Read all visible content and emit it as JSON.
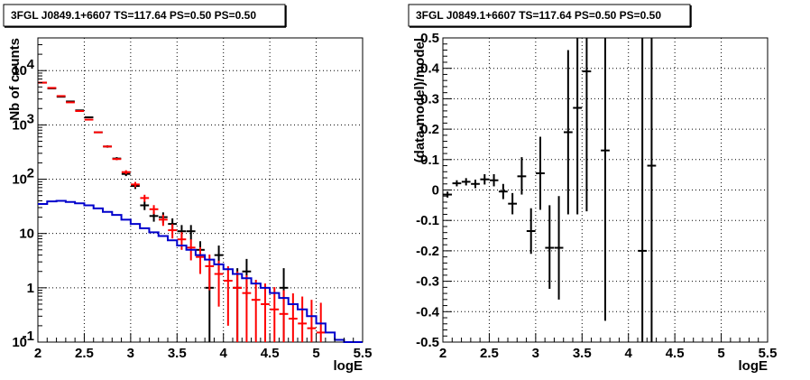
{
  "chart_data": [
    {
      "type": "line",
      "title": "3FGL J0849.1+6607 TS=117.64 PS=0.50 PS=0.50",
      "xlabel": "logE",
      "ylabel": "Nb of counts",
      "xlim": [
        2,
        5.5
      ],
      "ylim": [
        0.1,
        40000
      ],
      "yscale": "log",
      "grid": true,
      "x_ticks": [
        "2",
        "2.5",
        "3",
        "3.5",
        "4",
        "4.5",
        "5",
        "5.5"
      ],
      "y_ticks": [
        {
          "base": "10",
          "exp": "-1",
          "value": 0.1
        },
        {
          "base": "1",
          "exp": "",
          "value": 1
        },
        {
          "base": "10",
          "exp": "",
          "value": 10
        },
        {
          "base": "10",
          "exp": "2",
          "value": 100
        },
        {
          "base": "10",
          "exp": "3",
          "value": 1000
        },
        {
          "base": "10",
          "exp": "4",
          "value": 10000
        }
      ],
      "colors": {
        "data": "#000000",
        "model": "#ff0000",
        "component": "#0000cc"
      },
      "series": [
        {
          "kind": "points",
          "color": "#000000",
          "points": [
            {
              "x": 2.05,
              "y": 6000,
              "lo": 5900,
              "hi": 6100
            },
            {
              "x": 2.15,
              "y": 4700,
              "lo": 4620,
              "hi": 4780
            },
            {
              "x": 2.25,
              "y": 3300,
              "lo": 3240,
              "hi": 3360
            },
            {
              "x": 2.35,
              "y": 2700,
              "lo": 2650,
              "hi": 2750
            },
            {
              "x": 2.45,
              "y": 1850,
              "lo": 1810,
              "hi": 1890
            },
            {
              "x": 2.55,
              "y": 1380,
              "lo": 1345,
              "hi": 1415
            },
            {
              "x": 2.65,
              "y": 730,
              "lo": 705,
              "hi": 755
            },
            {
              "x": 2.75,
              "y": 400,
              "lo": 380,
              "hi": 420
            },
            {
              "x": 2.85,
              "y": 240,
              "lo": 225,
              "hi": 255
            },
            {
              "x": 2.95,
              "y": 125,
              "lo": 114,
              "hi": 136
            },
            {
              "x": 3.05,
              "y": 75,
              "lo": 66,
              "hi": 84
            },
            {
              "x": 3.15,
              "y": 33,
              "lo": 27,
              "hi": 39
            },
            {
              "x": 3.25,
              "y": 21,
              "lo": 16.5,
              "hi": 25.5
            },
            {
              "x": 3.35,
              "y": 20,
              "lo": 15.5,
              "hi": 24.5
            },
            {
              "x": 3.45,
              "y": 15,
              "lo": 11,
              "hi": 19
            },
            {
              "x": 3.55,
              "y": 11,
              "lo": 7.7,
              "hi": 14.3
            },
            {
              "x": 3.65,
              "y": 11,
              "lo": 7.7,
              "hi": 14.3
            },
            {
              "x": 3.75,
              "y": 5,
              "lo": 3,
              "hi": 7.2
            },
            {
              "x": 3.85,
              "y": 1,
              "lo": 0.1,
              "hi": 2.3
            },
            {
              "x": 3.95,
              "y": 4,
              "lo": 2.1,
              "hi": 6.0
            },
            {
              "x": 4.15,
              "y": 1,
              "lo": 0.1,
              "hi": 2.3
            },
            {
              "x": 4.25,
              "y": 2,
              "lo": 0.6,
              "hi": 3.4
            },
            {
              "x": 4.65,
              "y": 1,
              "lo": 0.1,
              "hi": 2.3
            }
          ]
        },
        {
          "kind": "points",
          "color": "#ff0000",
          "points": [
            {
              "x": 2.05,
              "y": 6000,
              "lo": 5930,
              "hi": 6070
            },
            {
              "x": 2.15,
              "y": 4800,
              "lo": 4740,
              "hi": 4860
            },
            {
              "x": 2.25,
              "y": 3400,
              "lo": 3350,
              "hi": 3450
            },
            {
              "x": 2.35,
              "y": 2600,
              "lo": 2560,
              "hi": 2640
            },
            {
              "x": 2.45,
              "y": 1800,
              "lo": 1770,
              "hi": 1830
            },
            {
              "x": 2.55,
              "y": 1250,
              "lo": 1225,
              "hi": 1275
            },
            {
              "x": 2.65,
              "y": 730,
              "lo": 713,
              "hi": 747
            },
            {
              "x": 2.75,
              "y": 400,
              "lo": 387,
              "hi": 413
            },
            {
              "x": 2.85,
              "y": 235,
              "lo": 225,
              "hi": 245
            },
            {
              "x": 2.95,
              "y": 135,
              "lo": 124,
              "hi": 146
            },
            {
              "x": 3.05,
              "y": 80,
              "lo": 71,
              "hi": 89
            },
            {
              "x": 3.15,
              "y": 45,
              "lo": 38.3,
              "hi": 51.7
            },
            {
              "x": 3.25,
              "y": 28,
              "lo": 22.7,
              "hi": 33.3
            },
            {
              "x": 3.35,
              "y": 18,
              "lo": 13.8,
              "hi": 22.2
            },
            {
              "x": 3.45,
              "y": 11.5,
              "lo": 8.1,
              "hi": 14.9
            },
            {
              "x": 3.55,
              "y": 7.8,
              "lo": 5.0,
              "hi": 10.6
            },
            {
              "x": 3.65,
              "y": 5.5,
              "lo": 3.2,
              "hi": 7.8
            },
            {
              "x": 3.75,
              "y": 3.7,
              "lo": 1.8,
              "hi": 5.6
            },
            {
              "x": 3.85,
              "y": 2.5,
              "lo": 0.9,
              "hi": 4.1
            },
            {
              "x": 3.95,
              "y": 1.8,
              "lo": 0.45,
              "hi": 3.15
            },
            {
              "x": 4.05,
              "y": 1.35,
              "lo": 0.2,
              "hi": 2.5
            },
            {
              "x": 4.15,
              "y": 1.0,
              "lo": 0.1,
              "hi": 2.0
            },
            {
              "x": 4.25,
              "y": 0.8,
              "lo": 0.1,
              "hi": 1.7
            },
            {
              "x": 4.35,
              "y": 0.6,
              "lo": 0.1,
              "hi": 1.4
            },
            {
              "x": 4.45,
              "y": 0.5,
              "lo": 0.1,
              "hi": 1.2
            },
            {
              "x": 4.55,
              "y": 0.4,
              "lo": 0.1,
              "hi": 1.03
            },
            {
              "x": 4.65,
              "y": 0.33,
              "lo": 0.1,
              "hi": 0.9
            },
            {
              "x": 4.75,
              "y": 0.27,
              "lo": 0.1,
              "hi": 0.79
            },
            {
              "x": 4.85,
              "y": 0.22,
              "lo": 0.1,
              "hi": 0.69
            },
            {
              "x": 4.95,
              "y": 0.18,
              "lo": 0.1,
              "hi": 0.6
            },
            {
              "x": 5.05,
              "y": 0.15,
              "lo": 0.1,
              "hi": 0.53
            }
          ]
        },
        {
          "kind": "step",
          "color": "#0000cc",
          "bin_width": 0.1,
          "x": [
            2.0,
            2.1,
            2.2,
            2.3,
            2.4,
            2.5,
            2.6,
            2.7,
            2.8,
            2.9,
            3.0,
            3.1,
            3.2,
            3.3,
            3.4,
            3.5,
            3.6,
            3.7,
            3.8,
            3.9,
            4.0,
            4.1,
            4.2,
            4.3,
            4.4,
            4.5,
            4.6,
            4.7,
            4.8,
            4.9,
            5.0,
            5.1,
            5.2,
            5.3,
            5.4
          ],
          "y": [
            35,
            39,
            40,
            38,
            36,
            33,
            29,
            25,
            22,
            18,
            15,
            12.5,
            10.5,
            9,
            7.5,
            6,
            5,
            4,
            3.3,
            2.7,
            2.2,
            1.8,
            1.5,
            1.2,
            1.0,
            0.8,
            0.65,
            0.5,
            0.4,
            0.3,
            0.22,
            0.15,
            0.11,
            0.1,
            0.1
          ]
        }
      ]
    },
    {
      "type": "scatter",
      "title": "3FGL J0849.1+6607 TS=117.64 PS=0.50 PS=0.50",
      "xlabel": "logE",
      "ylabel": "(data-model)/model",
      "xlim": [
        2,
        5.5
      ],
      "ylim": [
        -0.5,
        0.5
      ],
      "grid": true,
      "x_ticks": [
        "2",
        "2.5",
        "3",
        "3.5",
        "4",
        "4.5",
        "5",
        "5.5"
      ],
      "y_ticks": [
        "-0.5",
        "-0.4",
        "-0.3",
        "-0.2",
        "-0.1",
        "0",
        "0.1",
        "0.2",
        "0.3",
        "0.4",
        "0.5"
      ],
      "series": [
        {
          "color": "#000000",
          "points": [
            {
              "x": 2.05,
              "y": -0.015,
              "lo": -0.025,
              "hi": -0.005
            },
            {
              "x": 2.15,
              "y": 0.022,
              "lo": 0.012,
              "hi": 0.032
            },
            {
              "x": 2.25,
              "y": 0.027,
              "lo": 0.015,
              "hi": 0.039
            },
            {
              "x": 2.35,
              "y": 0.02,
              "lo": 0.006,
              "hi": 0.034
            },
            {
              "x": 2.45,
              "y": 0.035,
              "lo": 0.018,
              "hi": 0.052
            },
            {
              "x": 2.55,
              "y": 0.032,
              "lo": 0.012,
              "hi": 0.052
            },
            {
              "x": 2.65,
              "y": -0.005,
              "lo": -0.03,
              "hi": 0.02
            },
            {
              "x": 2.75,
              "y": -0.045,
              "lo": -0.08,
              "hi": -0.01
            },
            {
              "x": 2.85,
              "y": 0.045,
              "lo": -0.015,
              "hi": 0.108
            },
            {
              "x": 2.95,
              "y": -0.135,
              "lo": -0.21,
              "hi": -0.06
            },
            {
              "x": 3.05,
              "y": 0.055,
              "lo": -0.065,
              "hi": 0.175
            },
            {
              "x": 3.15,
              "y": -0.19,
              "lo": -0.325,
              "hi": -0.05
            },
            {
              "x": 3.25,
              "y": -0.19,
              "lo": -0.36,
              "hi": -0.02
            },
            {
              "x": 3.35,
              "y": 0.19,
              "lo": -0.08,
              "hi": 0.46
            },
            {
              "x": 3.45,
              "y": 0.27,
              "lo": -0.08,
              "hi": 0.62
            },
            {
              "x": 3.55,
              "y": 0.39,
              "lo": -0.07,
              "hi": 0.86
            },
            {
              "x": 3.75,
              "y": 0.13,
              "lo": -0.43,
              "hi": 0.69
            },
            {
              "x": 4.15,
              "y": -0.2,
              "lo": -0.8,
              "hi": 0.6
            },
            {
              "x": 4.25,
              "y": 0.08,
              "lo": -0.65,
              "hi": 0.8
            }
          ]
        }
      ]
    }
  ]
}
